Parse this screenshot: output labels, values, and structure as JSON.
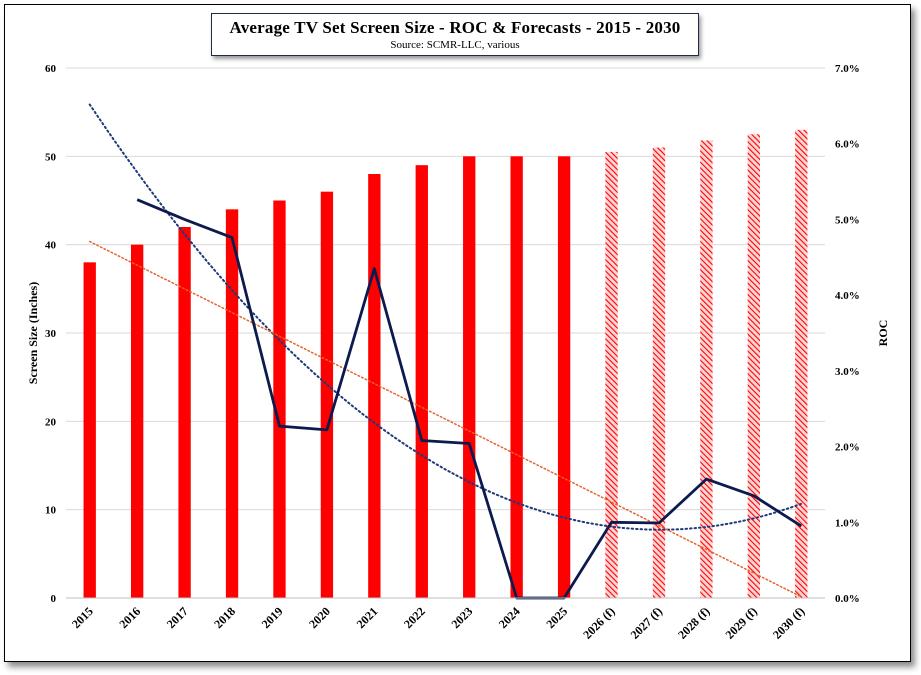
{
  "chart_data": {
    "type": "bar",
    "title": "Average TV Set Screen Size - ROC & Forecasts - 2015 - 2030",
    "subtitle": "Source: SCMR-LLC, various",
    "ylabel": "Screen Size (Inches)",
    "y2label": "ROC",
    "ylim": [
      0,
      60
    ],
    "yticks": [
      "0",
      "10",
      "20",
      "30",
      "40",
      "50",
      "60"
    ],
    "y2lim": [
      0,
      0.07
    ],
    "y2ticks": [
      "0.0%",
      "1.0%",
      "2.0%",
      "3.0%",
      "4.0%",
      "5.0%",
      "6.0%",
      "7.0%"
    ],
    "grid": true,
    "categories": [
      "2015",
      "2016",
      "2017",
      "2018",
      "2019",
      "2020",
      "2021",
      "2022",
      "2023",
      "2024",
      "2025",
      "2026 (f)",
      "2027 (f)",
      "2028 (f)",
      "2029 (f)",
      "2030 (f)"
    ],
    "series": [
      {
        "type": "bar",
        "axis": "left",
        "color": "#ff0000",
        "forecast_pattern": "hatched",
        "values": [
          38,
          40,
          42,
          44,
          45,
          46,
          48,
          49,
          50,
          50,
          50,
          50.5,
          51,
          51.8,
          52.5,
          53
        ],
        "forecast_from_index": 11
      },
      {
        "type": "line",
        "axis": "right",
        "color": "#0d1a4d",
        "values": [
          null,
          0.0526,
          0.05,
          0.0476,
          0.0227,
          0.0222,
          0.0435,
          0.0208,
          0.0204,
          0.0,
          0.0,
          0.01,
          0.0099,
          0.0157,
          0.0135,
          0.0095
        ]
      }
    ],
    "trendlines": [
      {
        "of": "ROC",
        "kind": "polynomial",
        "style": "dotted",
        "color": "#1f3a7a"
      },
      {
        "of": "Screen Size",
        "kind": "linear",
        "style": "dotted",
        "color": "#e8632a"
      }
    ]
  }
}
